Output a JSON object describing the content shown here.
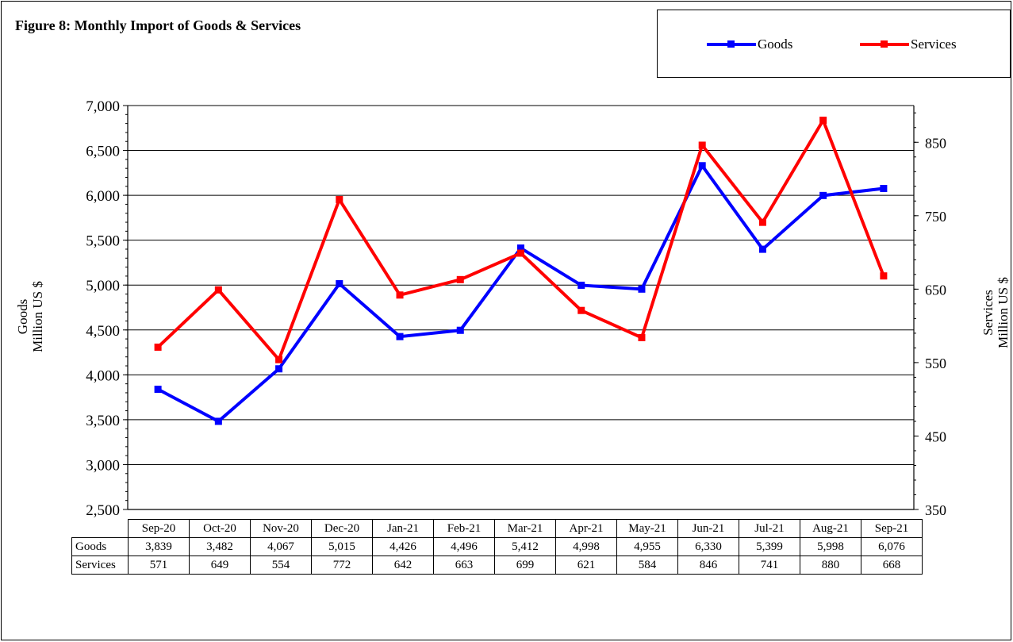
{
  "chart_data": {
    "type": "line",
    "title": "Figure 8: Monthly Import of Goods & Services",
    "categories": [
      "Sep-20",
      "Oct-20",
      "Nov-20",
      "Dec-20",
      "Jan-21",
      "Feb-21",
      "Mar-21",
      "Apr-21",
      "May-21",
      "Jun-21",
      "Jul-21",
      "Aug-21",
      "Sep-21"
    ],
    "series": [
      {
        "name": "Goods",
        "axis": "left",
        "color": "#0000ff",
        "values": [
          3839,
          3482,
          4067,
          5015,
          4426,
          4496,
          5412,
          4998,
          4955,
          6330,
          5399,
          5998,
          6076
        ],
        "labels": [
          "3,839",
          "3,482",
          "4,067",
          "5,015",
          "4,426",
          "4,496",
          "5,412",
          "4,998",
          "4,955",
          "6,330",
          "5,399",
          "5,998",
          "6,076"
        ]
      },
      {
        "name": "Services",
        "axis": "right",
        "color": "#ff0000",
        "values": [
          571,
          649,
          554,
          772,
          642,
          663,
          699,
          621,
          584,
          846,
          741,
          880,
          668
        ],
        "labels": [
          "571",
          "649",
          "554",
          "772",
          "642",
          "663",
          "699",
          "621",
          "584",
          "846",
          "741",
          "880",
          "668"
        ]
      }
    ],
    "y_left": {
      "label_line1": "Goods",
      "label_line2": "Million US $",
      "ylim": [
        2500,
        7000
      ],
      "ticks": [
        "2,500",
        "3,000",
        "3,500",
        "4,000",
        "4,500",
        "5,000",
        "5,500",
        "6,000",
        "6,500",
        "7,000"
      ]
    },
    "y_right": {
      "label_line1": "Services",
      "label_line2": "Million US $",
      "ylim": [
        350,
        900
      ],
      "ticks": [
        "350",
        "450",
        "550",
        "650",
        "750",
        "850"
      ]
    },
    "grid": true,
    "legend_position": "top-right"
  }
}
